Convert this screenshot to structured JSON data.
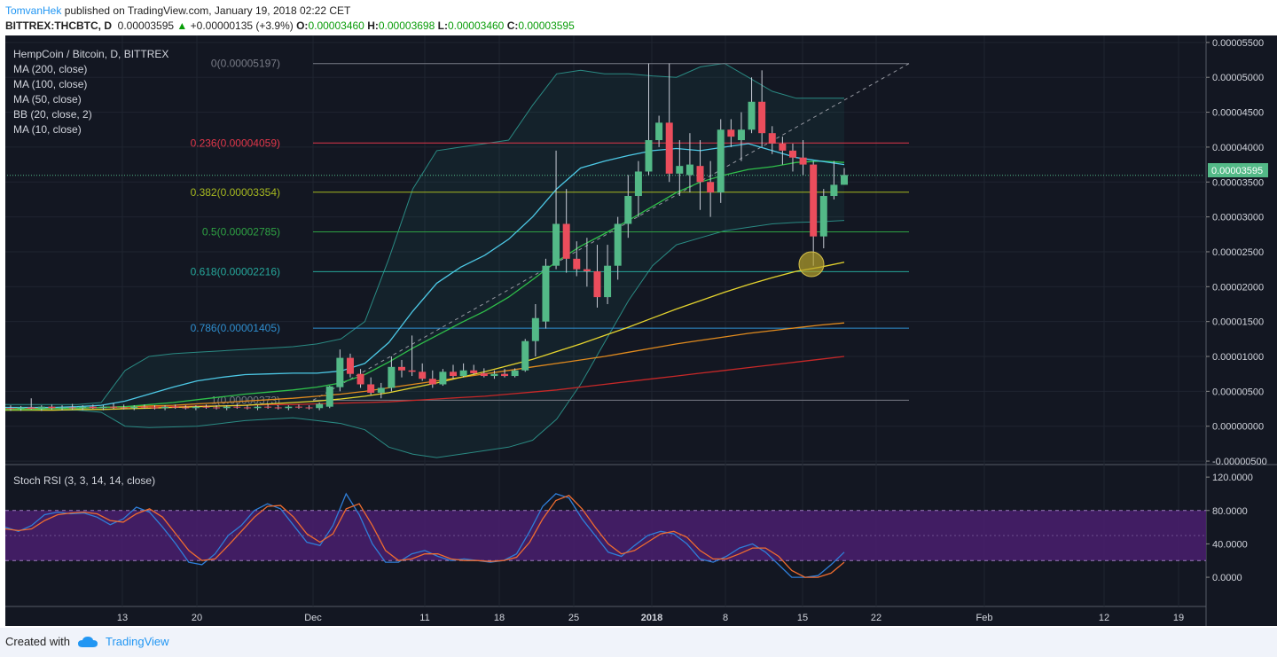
{
  "header": {
    "author": "TomvanHek",
    "published": "published on TradingView.com, January 19, 2018 02:22 CET",
    "symbol": "BITTREX:THCBTC, D",
    "price": "0.00003595",
    "change": "+0.00000135 (+3.9%)",
    "open_label": "O:",
    "open": "0.00003460",
    "high_label": "H:",
    "high": "0.00003698",
    "low_label": "L:",
    "low": "0.00003460",
    "close_label": "C:",
    "close": "0.00003595"
  },
  "legend": {
    "title": "HempCoin / Bitcoin, D, BITTREX",
    "items": [
      "MA (200, close)",
      "MA (100, close)",
      "MA (50, close)",
      "BB (20, close, 2)",
      "MA (10, close)"
    ]
  },
  "rsi_title": "Stoch RSI (3, 3, 14, 14, close)",
  "footer": {
    "created": "Created with",
    "brand": "TradingView"
  },
  "colors": {
    "up": "#53b987",
    "down": "#eb4d5c",
    "bg": "#131722",
    "rsi_band": "#4a1f6e"
  },
  "chart_data": [
    {
      "type": "candlestick",
      "title": "HempCoin / Bitcoin, D, BITTREX",
      "x_ticks": [
        "13",
        "20",
        "Dec",
        "11",
        "18",
        "25",
        "2018",
        "8",
        "15",
        "22",
        "Feb",
        "12",
        "19"
      ],
      "y_ticks": [
        "0.00005500",
        "0.00005000",
        "0.00004500",
        "0.00004000",
        "0.00003500",
        "0.00003000",
        "0.00002500",
        "0.00002000",
        "0.00001500",
        "0.00001000",
        "0.00000500",
        "0.00000000",
        "-0.00000500"
      ],
      "ylim": [
        -5.5e-06,
        5.6e-05
      ],
      "last_price_label": "0.00003595",
      "fib_levels": [
        {
          "label": "0(0.00005197)",
          "value": 5.197e-05,
          "color": "#787b86"
        },
        {
          "label": "0.236(0.00004059)",
          "value": 4.059e-05,
          "color": "#e0374a"
        },
        {
          "label": "0.382(0.00003354)",
          "value": 3.354e-05,
          "color": "#a6b820"
        },
        {
          "label": "0.5(0.00002785)",
          "value": 2.785e-05,
          "color": "#2ea043"
        },
        {
          "label": "0.618(0.00002216)",
          "value": 2.216e-05,
          "color": "#26a69a"
        },
        {
          "label": "0.786(0.00001405)",
          "value": 1.405e-05,
          "color": "#2f8fd0"
        },
        {
          "label": "1(0.00000373)",
          "value": 3.73e-06,
          "color": "#787b86"
        }
      ],
      "ohlc": [
        [
          2.6e-06,
          3e-06,
          2.2e-06,
          2.5e-06
        ],
        [
          2.5e-06,
          2.9e-06,
          2.2e-06,
          2.7e-06
        ],
        [
          2.7e-06,
          4e-06,
          2.4e-06,
          2.5e-06
        ],
        [
          2.5e-06,
          3e-06,
          2.2e-06,
          2.8e-06
        ],
        [
          2.8e-06,
          3.1e-06,
          2.4e-06,
          2.6e-06
        ],
        [
          2.6e-06,
          3e-06,
          2.3e-06,
          2.7e-06
        ],
        [
          2.7e-06,
          3.2e-06,
          2.4e-06,
          2.6e-06
        ],
        [
          2.6e-06,
          3e-06,
          2.3e-06,
          2.8e-06
        ],
        [
          2.8e-06,
          3.1e-06,
          2.5e-06,
          2.6e-06
        ],
        [
          2.6e-06,
          3e-06,
          2.3e-06,
          2.8e-06
        ],
        [
          2.8e-06,
          3.3e-06,
          2.5e-06,
          2.7e-06
        ],
        [
          2.7e-06,
          3.1e-06,
          2.4e-06,
          2.6e-06
        ],
        [
          2.6e-06,
          3e-06,
          2.3e-06,
          2.8e-06
        ],
        [
          2.8e-06,
          3.1e-06,
          2.5e-06,
          2.7e-06
        ],
        [
          2.7e-06,
          3e-06,
          2.4e-06,
          2.6e-06
        ],
        [
          2.6e-06,
          3e-06,
          2.3e-06,
          2.8e-06
        ],
        [
          2.8e-06,
          3.1e-06,
          2.5e-06,
          2.7e-06
        ],
        [
          2.7e-06,
          3e-06,
          2.4e-06,
          2.6e-06
        ],
        [
          2.6e-06,
          3e-06,
          2.3e-06,
          2.8e-06
        ],
        [
          2.8e-06,
          3.1e-06,
          2.5e-06,
          2.7e-06
        ],
        [
          2.7e-06,
          3e-06,
          2.4e-06,
          2.6e-06
        ],
        [
          2.6e-06,
          3e-06,
          2.3e-06,
          2.8e-06
        ],
        [
          2.8e-06,
          3.2e-06,
          2.5e-06,
          2.7e-06
        ],
        [
          2.7e-06,
          3e-06,
          2.4e-06,
          2.6e-06
        ],
        [
          2.6e-06,
          3e-06,
          2.3e-06,
          2.8e-06
        ],
        [
          2.8e-06,
          3.1e-06,
          2.5e-06,
          2.7e-06
        ],
        [
          2.7e-06,
          3e-06,
          2.4e-06,
          2.6e-06
        ],
        [
          2.6e-06,
          3e-06,
          2.3e-06,
          2.8e-06
        ],
        [
          2.8e-06,
          3.1e-06,
          2.5e-06,
          2.7e-06
        ],
        [
          2.7e-06,
          3e-06,
          2.4e-06,
          2.6e-06
        ],
        [
          2.6e-06,
          3.4e-06,
          2.3e-06,
          3.2e-06
        ],
        [
          2.8e-06,
          5.8e-06,
          2.6e-06,
          5.7e-06
        ],
        [
          5.6e-06,
          1.1e-05,
          5e-06,
          9.8e-06
        ],
        [
          9.8e-06,
          1.04e-05,
          7e-06,
          7.5e-06
        ],
        [
          7.5e-06,
          8.2e-06,
          5.5e-06,
          6e-06
        ],
        [
          6e-06,
          7e-06,
          4.5e-06,
          4.8e-06
        ],
        [
          4.8e-06,
          6.2e-06,
          4e-06,
          5.5e-06
        ],
        [
          5.5e-06,
          1e-05,
          5e-06,
          8.5e-06
        ],
        [
          8.5e-06,
          9.5e-06,
          7e-06,
          8e-06
        ],
        [
          8e-06,
          1.3e-05,
          7.2e-06,
          7.8e-06
        ],
        [
          7.8e-06,
          9e-06,
          6.5e-06,
          6.8e-06
        ],
        [
          6.8e-06,
          8e-06,
          5.5e-06,
          6e-06
        ],
        [
          6e-06,
          8.2e-06,
          5.8e-06,
          7.8e-06
        ],
        [
          7.8e-06,
          8.8e-06,
          6.8e-06,
          7.2e-06
        ],
        [
          7.2e-06,
          9e-06,
          7e-06,
          8e-06
        ],
        [
          8e-06,
          8.8e-06,
          7.4e-06,
          7.6e-06
        ],
        [
          7.6e-06,
          8.3e-06,
          7e-06,
          7.2e-06
        ],
        [
          7.2e-06,
          8e-06,
          6.8e-06,
          7.5e-06
        ],
        [
          7.5e-06,
          8.2e-06,
          7e-06,
          7.2e-06
        ],
        [
          7.2e-06,
          8.3e-06,
          7e-06,
          8e-06
        ],
        [
          8e-06,
          1.25e-05,
          7.8e-06,
          1.22e-05
        ],
        [
          1.22e-05,
          1.75e-05,
          1e-05,
          1.55e-05
        ],
        [
          1.5e-05,
          2.4e-05,
          1.4e-05,
          2.3e-05
        ],
        [
          2.3e-05,
          3.95e-05,
          2.25e-05,
          2.9e-05
        ],
        [
          2.9e-05,
          3.4e-05,
          2.2e-05,
          2.4e-05
        ],
        [
          2.4e-05,
          2.65e-05,
          2.15e-05,
          2.25e-05
        ],
        [
          2.25e-05,
          2.7e-05,
          2e-05,
          2.22e-05
        ],
        [
          2.22e-05,
          2.6e-05,
          1.7e-05,
          1.85e-05
        ],
        [
          1.85e-05,
          2.6e-05,
          1.75e-05,
          2.3e-05
        ],
        [
          2.3e-05,
          3e-05,
          2.1e-05,
          2.9e-05
        ],
        [
          2.9e-05,
          3.6e-05,
          2.7e-05,
          3.3e-05
        ],
        [
          3.3e-05,
          3.8e-05,
          3e-05,
          3.65e-05
        ],
        [
          3.65e-05,
          5.2e-05,
          3.6e-05,
          4.1e-05
        ],
        [
          4.1e-05,
          4.45e-05,
          4e-05,
          4.35e-05
        ],
        [
          4.35e-05,
          5.2e-05,
          3.5e-05,
          3.62e-05
        ],
        [
          3.62e-05,
          4.1e-05,
          3.3e-05,
          3.73e-05
        ],
        [
          3.6e-05,
          4.2e-05,
          3.35e-05,
          3.75e-05
        ],
        [
          3.73e-05,
          4.1e-05,
          3.1e-05,
          3.5e-05
        ],
        [
          3.5e-05,
          3.8e-05,
          3e-05,
          3.35e-05
        ],
        [
          3.35e-05,
          4.4e-05,
          3.2e-05,
          4.25e-05
        ],
        [
          4.25e-05,
          4.4e-05,
          4e-05,
          4.15e-05
        ],
        [
          4.1e-05,
          4.5e-05,
          3.8e-05,
          4.25e-05
        ],
        [
          4.25e-05,
          5e-05,
          4.2e-05,
          4.65e-05
        ],
        [
          4.65e-05,
          5.1e-05,
          4e-05,
          4.2e-05
        ],
        [
          4.2e-05,
          4.3e-05,
          3.9e-05,
          4.05e-05
        ],
        [
          4.05e-05,
          4.15e-05,
          3.75e-05,
          3.95e-05
        ],
        [
          3.95e-05,
          4.05e-05,
          3.65e-05,
          3.85e-05
        ],
        [
          3.85e-05,
          4.1e-05,
          3.6e-05,
          3.75e-05
        ],
        [
          3.75e-05,
          3.8e-05,
          2.3e-05,
          2.72e-05
        ],
        [
          2.72e-05,
          3.4e-05,
          2.55e-05,
          3.3e-05
        ],
        [
          3.3e-05,
          3.8e-05,
          3.25e-05,
          3.46e-05
        ],
        [
          3.46e-05,
          3.7e-05,
          3.46e-05,
          3.6e-05
        ]
      ],
      "ma10": [
        2.7e-06,
        2.7e-06,
        2.7e-06,
        2.8e-06,
        3e-06,
        3.6e-06,
        4.6e-06,
        5.6e-06,
        6.5e-06,
        7e-06,
        7.4e-06,
        7.5e-06,
        7.6e-06,
        7.6e-06,
        7.9e-06,
        9e-06,
        1.2e-05,
        1.65e-05,
        2.05e-05,
        2.28e-05,
        2.45e-05,
        2.68e-05,
        3e-05,
        3.4e-05,
        3.7e-05,
        3.8e-05,
        3.88e-05,
        3.95e-05,
        3.98e-05,
        3.95e-05,
        4e-05,
        4.05e-05,
        3.95e-05,
        3.85e-05,
        3.8e-05,
        3.75e-05
      ],
      "ma50": [
        2.4e-06,
        2.4e-06,
        2.5e-06,
        2.6e-06,
        2.7e-06,
        2.8e-06,
        3.1e-06,
        3.4e-06,
        3.8e-06,
        4.2e-06,
        4.6e-06,
        4.9e-06,
        5.2e-06,
        5.6e-06,
        6.2e-06,
        7.4e-06,
        9.2e-06,
        1.12e-05,
        1.3e-05,
        1.48e-05,
        1.65e-05,
        1.85e-05,
        2.1e-05,
        2.36e-05,
        2.58e-05,
        2.76e-05,
        2.95e-05,
        3.15e-05,
        3.35e-05,
        3.5e-05,
        3.6e-05,
        3.68e-05,
        3.72e-05,
        3.78e-05,
        3.8e-05,
        3.78e-05
      ],
      "ma100": [
        2.3e-06,
        2.3e-06,
        2.3e-06,
        2.4e-06,
        2.4e-06,
        2.5e-06,
        2.6e-06,
        2.7e-06,
        2.8e-06,
        2.9e-06,
        3e-06,
        3.2e-06,
        3.4e-06,
        3.6e-06,
        3.9e-06,
        4.3e-06,
        4.8e-06,
        5.5e-06,
        6.2e-06,
        7e-06,
        7.8e-06,
        8.7e-06,
        9.6e-06,
        1.07e-05,
        1.18e-05,
        1.3e-05,
        1.42e-05,
        1.55e-05,
        1.68e-05,
        1.8e-05,
        1.92e-05,
        2.03e-05,
        2.13e-05,
        2.22e-05,
        2.28e-05,
        2.35e-05
      ],
      "ma200": [
        2.4e-06,
        2.5e-06,
        2.6e-06,
        2.6e-06,
        2.7e-06,
        2.7e-06,
        2.8e-06,
        2.8e-06,
        2.9e-06,
        2.9e-06,
        3e-06,
        3.1e-06,
        3.1e-06,
        3.2e-06,
        3.3e-06,
        3.4e-06,
        3.5e-06,
        3.7e-06,
        3.9e-06,
        4.1e-06,
        4.3e-06,
        4.6e-06,
        4.9e-06,
        5.2e-06,
        5.6e-06,
        6e-06,
        6.4e-06,
        6.8e-06,
        7.2e-06,
        7.6e-06,
        8e-06,
        8.4e-06,
        8.8e-06,
        9.2e-06,
        9.6e-06,
        1e-05
      ],
      "ma_orange": [
        2.5e-06,
        2.5e-06,
        2.6e-06,
        2.6e-06,
        2.7e-06,
        2.8e-06,
        2.9e-06,
        3e-06,
        3.2e-06,
        3.4e-06,
        3.6e-06,
        3.8e-06,
        4e-06,
        4.3e-06,
        4.6e-06,
        5e-06,
        5.5e-06,
        6e-06,
        6.5e-06,
        7e-06,
        7.5e-06,
        8e-06,
        8.5e-06,
        9e-06,
        9.5e-06,
        1e-05,
        1.06e-05,
        1.12e-05,
        1.18e-05,
        1.23e-05,
        1.28e-05,
        1.33e-05,
        1.37e-05,
        1.41e-05,
        1.45e-05,
        1.48e-05
      ],
      "bb_upper": [
        3.1e-06,
        3.1e-06,
        3.1e-06,
        3.1e-06,
        3.4e-06,
        8e-06,
        1e-05,
        1.04e-05,
        1.06e-05,
        1.08e-05,
        1.1e-05,
        1.12e-05,
        1.14e-05,
        1.18e-05,
        1.25e-05,
        1.5e-05,
        2.4e-05,
        3.4e-05,
        3.95e-05,
        4e-05,
        4.05e-05,
        4.1e-05,
        4.6e-05,
        5.05e-05,
        5.1e-05,
        5.05e-05,
        5.05e-05,
        5.02e-05,
        5e-05,
        5.15e-05,
        5.2e-05,
        5e-05,
        4.8e-05,
        4.7e-05,
        4.7e-05,
        4.7e-05
      ],
      "bb_lower": [
        2.3e-06,
        2.3e-06,
        2.3e-06,
        2.3e-06,
        2e-06,
        0.0,
        -2e-07,
        -1e-07,
        0.0,
        4e-07,
        8e-07,
        1e-06,
        1.2e-06,
        8e-07,
        4e-07,
        -5e-07,
        -3e-06,
        -4e-06,
        -4.5e-06,
        -4e-06,
        -3.5e-06,
        -3e-06,
        -2e-06,
        1e-06,
        6e-06,
        1.2e-05,
        1.8e-05,
        2.3e-05,
        2.6e-05,
        2.7e-05,
        2.8e-05,
        2.85e-05,
        2.9e-05,
        2.92e-05,
        2.93e-05,
        2.95e-05
      ]
    },
    {
      "type": "line",
      "title": "Stoch RSI (3, 3, 14, 14, close)",
      "y_ticks": [
        "120.0000",
        "80.0000",
        "40.0000",
        "0.0000"
      ],
      "ylim": [
        -35,
        135
      ],
      "band": [
        20,
        80
      ],
      "series": [
        {
          "color": "#2f7ed8",
          "values": [
            60,
            55,
            62,
            75,
            78,
            76,
            77,
            72,
            63,
            70,
            84,
            78,
            60,
            40,
            18,
            15,
            28,
            50,
            62,
            80,
            88,
            82,
            62,
            42,
            38,
            62,
            100,
            75,
            40,
            18,
            18,
            28,
            32,
            25,
            20,
            22,
            20,
            18,
            20,
            28,
            55,
            85,
            100,
            95,
            70,
            50,
            30,
            25,
            38,
            50,
            55,
            52,
            40,
            22,
            18,
            25,
            35,
            40,
            30,
            15,
            0,
            0,
            2,
            15,
            30
          ]
        },
        {
          "color": "#ef6c2f",
          "values": [
            58,
            56,
            58,
            68,
            75,
            77,
            78,
            76,
            68,
            66,
            76,
            82,
            72,
            52,
            32,
            20,
            22,
            38,
            55,
            72,
            85,
            86,
            72,
            52,
            42,
            52,
            82,
            88,
            62,
            32,
            20,
            22,
            28,
            28,
            22,
            20,
            20,
            19,
            20,
            24,
            42,
            70,
            92,
            98,
            82,
            60,
            40,
            28,
            32,
            42,
            52,
            55,
            48,
            32,
            22,
            22,
            28,
            35,
            35,
            25,
            8,
            0,
            0,
            5,
            18
          ]
        }
      ]
    }
  ]
}
